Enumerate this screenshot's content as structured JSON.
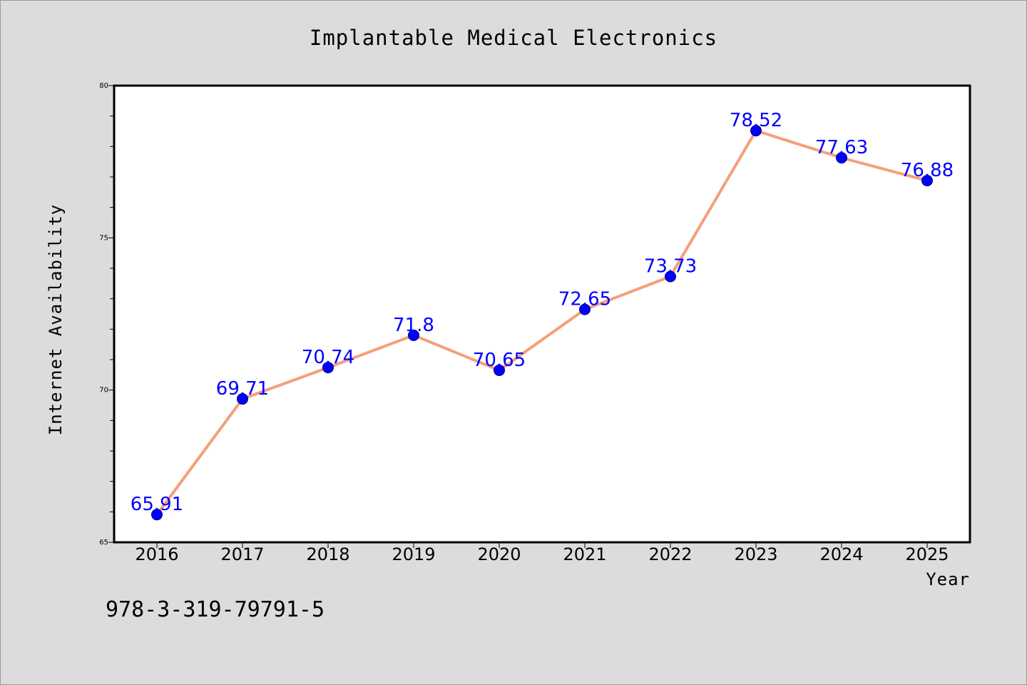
{
  "chart_data": {
    "type": "line",
    "title": "Implantable Medical Electronics",
    "xlabel": "Year",
    "ylabel": "Internet Availability",
    "categories": [
      "2016",
      "2017",
      "2018",
      "2019",
      "2020",
      "2021",
      "2022",
      "2023",
      "2024",
      "2025"
    ],
    "values": [
      65.91,
      69.71,
      70.74,
      71.8,
      70.65,
      72.65,
      73.73,
      78.52,
      77.63,
      76.88
    ],
    "data_labels": [
      "65.91",
      "69.71",
      "70.74",
      "71.8",
      "70.65",
      "72.65",
      "73.73",
      "78.52",
      "77.63",
      "76.88"
    ],
    "ylim": [
      65,
      80
    ],
    "yticks": [
      "65",
      "70",
      "75",
      "80"
    ],
    "grid": false,
    "legend": "none",
    "line_color": "#f4a07a",
    "marker_color": "#0000ff",
    "label_color": "#0000ff"
  },
  "footer": {
    "code": "978-3-319-79791-5"
  }
}
